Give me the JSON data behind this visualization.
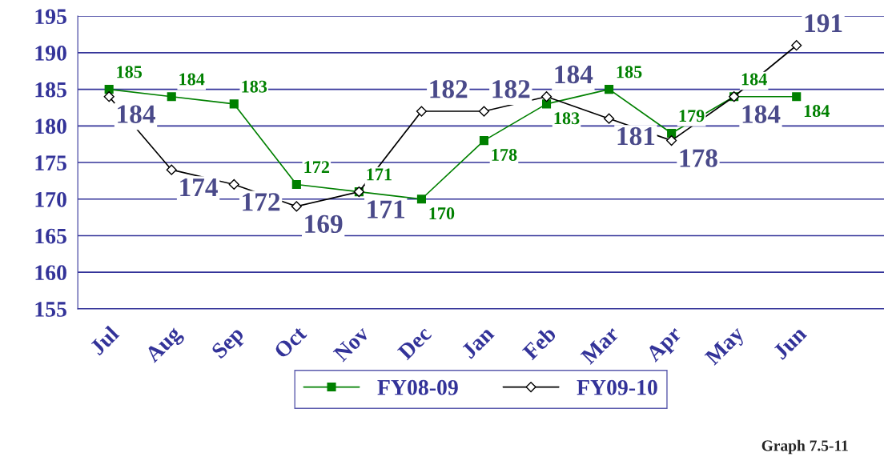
{
  "chart_data": {
    "type": "line",
    "categories": [
      "Jul",
      "Aug",
      "Sep",
      "Oct",
      "Nov",
      "Dec",
      "Jan",
      "Feb",
      "Mar",
      "Apr",
      "May",
      "Jun"
    ],
    "series": [
      {
        "name": "FY08-09",
        "color": "#008000",
        "marker": "square",
        "values": [
          185,
          184,
          183,
          172,
          171,
          170,
          178,
          183,
          185,
          179,
          184,
          184
        ]
      },
      {
        "name": "FY09-10",
        "color": "#000000",
        "marker": "diamond",
        "values": [
          184,
          174,
          172,
          169,
          171,
          182,
          182,
          184,
          181,
          178,
          184,
          191
        ]
      }
    ],
    "ylim": [
      155,
      195
    ],
    "yticks": [
      155,
      160,
      165,
      170,
      175,
      180,
      185,
      190,
      195
    ],
    "grid": "y",
    "legend": "bottom",
    "data_labels": true,
    "annotations": [
      "Graph 7.5-11"
    ]
  }
}
